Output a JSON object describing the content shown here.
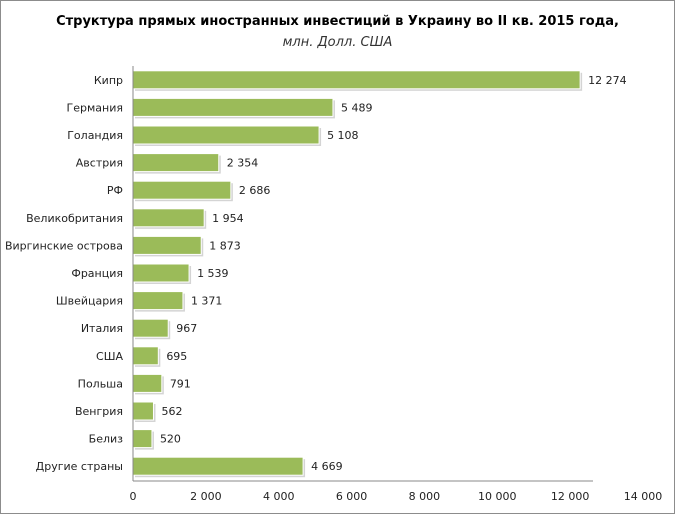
{
  "chart_data": {
    "type": "bar",
    "orientation": "horizontal",
    "title": "Структура прямых иностранных инвестиций в Украину во II кв. 2015 года,",
    "subtitle": "млн. Долл. США",
    "categories": [
      "Кипр",
      "Германия",
      "Голандия",
      "Австрия",
      "РФ",
      "Великобритания",
      "Виргинские острова",
      "Франция",
      "Швейцария",
      "Италия",
      "США",
      "Польша",
      "Венгрия",
      "Белиз",
      "Другие страны"
    ],
    "values": [
      12274,
      5489,
      5108,
      2354,
      2686,
      1954,
      1873,
      1539,
      1371,
      967,
      695,
      791,
      562,
      520,
      4669
    ],
    "value_labels": [
      "12 274",
      "5 489",
      "5 108",
      "2 354",
      "2 686",
      "1 954",
      "1 873",
      "1 539",
      "1 371",
      "967",
      "695",
      "791",
      "562",
      "520",
      "4 669"
    ],
    "xlim": [
      0,
      14000
    ],
    "xticks": [
      0,
      2000,
      4000,
      6000,
      8000,
      10000,
      12000,
      14000
    ],
    "xtick_labels": [
      "0",
      "2 000",
      "4 000",
      "6 000",
      "8 000",
      "10 000",
      "12 000",
      "14 000"
    ],
    "bar_color": "#9bbb59",
    "grid": false,
    "legend": "none"
  }
}
